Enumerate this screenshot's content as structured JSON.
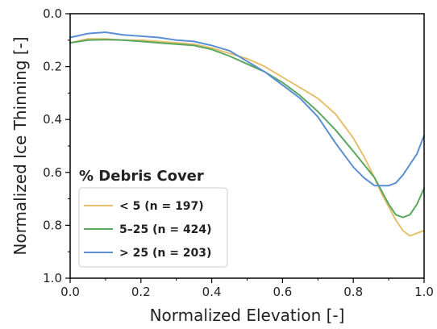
{
  "chart_data": {
    "type": "line",
    "title": "",
    "xlabel": "Normalized Elevation [-]",
    "ylabel": "Normalized Ice Thinning [-]",
    "xlim": [
      0.0,
      1.0
    ],
    "ylim": [
      1.0,
      0.0
    ],
    "y_inverted": true,
    "grid": false,
    "xticks": [
      "0.0",
      "0.2",
      "0.4",
      "0.6",
      "0.8",
      "1.0"
    ],
    "yticks": [
      "0.0",
      "0.2",
      "0.4",
      "0.6",
      "0.8",
      "1.0"
    ],
    "legend": {
      "title": "% Debris Cover",
      "placement": "lower-left"
    },
    "series": [
      {
        "name": "< 5  (n = 197)",
        "color": "#e6bf6a",
        "x": [
          0.0,
          0.05,
          0.1,
          0.15,
          0.2,
          0.25,
          0.3,
          0.35,
          0.4,
          0.45,
          0.5,
          0.55,
          0.6,
          0.65,
          0.7,
          0.75,
          0.8,
          0.83,
          0.86,
          0.88,
          0.9,
          0.92,
          0.94,
          0.96,
          0.98,
          1.0
        ],
        "y": [
          0.11,
          0.095,
          0.095,
          0.1,
          0.1,
          0.105,
          0.11,
          0.115,
          0.13,
          0.15,
          0.17,
          0.2,
          0.24,
          0.28,
          0.32,
          0.38,
          0.47,
          0.54,
          0.62,
          0.68,
          0.73,
          0.78,
          0.82,
          0.84,
          0.83,
          0.82
        ]
      },
      {
        "name": "5–25 (n = 424)",
        "color": "#5aa75e",
        "x": [
          0.0,
          0.05,
          0.1,
          0.15,
          0.2,
          0.25,
          0.3,
          0.35,
          0.4,
          0.45,
          0.5,
          0.55,
          0.6,
          0.65,
          0.7,
          0.75,
          0.8,
          0.83,
          0.86,
          0.88,
          0.9,
          0.92,
          0.94,
          0.96,
          0.98,
          1.0
        ],
        "y": [
          0.11,
          0.1,
          0.098,
          0.1,
          0.105,
          0.11,
          0.115,
          0.12,
          0.135,
          0.16,
          0.19,
          0.22,
          0.26,
          0.31,
          0.37,
          0.44,
          0.52,
          0.57,
          0.62,
          0.67,
          0.72,
          0.76,
          0.77,
          0.76,
          0.72,
          0.66
        ]
      },
      {
        "name": "> 25 (n = 203)",
        "color": "#5b8fd1",
        "x": [
          0.0,
          0.05,
          0.1,
          0.15,
          0.2,
          0.25,
          0.3,
          0.35,
          0.4,
          0.45,
          0.5,
          0.55,
          0.6,
          0.65,
          0.7,
          0.75,
          0.8,
          0.83,
          0.86,
          0.88,
          0.9,
          0.92,
          0.94,
          0.96,
          0.98,
          1.0
        ],
        "y": [
          0.09,
          0.075,
          0.07,
          0.08,
          0.085,
          0.09,
          0.1,
          0.105,
          0.12,
          0.14,
          0.18,
          0.22,
          0.27,
          0.32,
          0.39,
          0.49,
          0.58,
          0.62,
          0.65,
          0.65,
          0.65,
          0.64,
          0.61,
          0.57,
          0.53,
          0.46
        ]
      }
    ]
  }
}
